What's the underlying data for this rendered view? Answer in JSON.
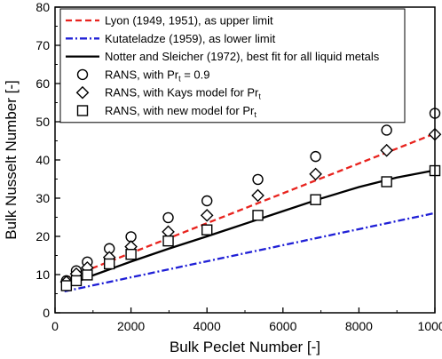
{
  "chart_data": {
    "type": "line",
    "xlabel": "Bulk Peclet Number [-]",
    "ylabel": "Bulk Nusselt Number [-]",
    "xlim": [
      0,
      10000
    ],
    "ylim": [
      0,
      80
    ],
    "x_ticks": [
      "0",
      "2000",
      "4000",
      "6000",
      "8000",
      "10000"
    ],
    "y_ticks": [
      "0",
      "10",
      "20",
      "30",
      "40",
      "50",
      "60",
      "70",
      "80"
    ],
    "grid": false,
    "legend_position": "top-left",
    "colors": {
      "lyon": "#e8231e",
      "kutateladze": "#1f1fd6",
      "notter": "#000000",
      "markers": "#000000"
    },
    "series": [
      {
        "name": "Lyon (1949, 1951), as upper limit",
        "legend_main": "Lyon (1949, 1951), as upper limit",
        "legend_sub": "",
        "legend_tail": "",
        "kind": "line",
        "style": "dashed",
        "color": "#e8231e",
        "x": [
          250,
          10000
        ],
        "y": [
          8.8,
          46.9
        ]
      },
      {
        "name": "Kutateladze (1959), as lower limit",
        "legend_main": "Kutateladze (1959), as lower limit",
        "legend_sub": "",
        "legend_tail": "",
        "kind": "line",
        "style": "dashdot",
        "color": "#1f1fd6",
        "x": [
          250,
          10000
        ],
        "y": [
          5.6,
          26.1
        ]
      },
      {
        "name": "Notter and Sleicher (1972), best fit for all liquid metals",
        "legend_main": "Notter and Sleicher (1972), best fit for all liquid metals",
        "legend_sub": "",
        "legend_tail": "",
        "kind": "line",
        "style": "solid",
        "color": "#000000",
        "x": [
          250,
          1000,
          2000,
          3000,
          4000,
          5000,
          6000,
          7000,
          8000,
          9000,
          10000
        ],
        "y": [
          6.8,
          9.8,
          13.4,
          16.8,
          20.0,
          23.3,
          26.6,
          29.9,
          32.9,
          35.4,
          37.3
        ]
      },
      {
        "name": "RANS, with Prt = 0.9",
        "legend_main": "RANS, with Pr",
        "legend_sub": "t",
        "legend_tail": " = 0.9",
        "kind": "marker",
        "marker": "circle",
        "color": "#000000",
        "x": [
          300,
          560,
          850,
          1430,
          2000,
          2980,
          4000,
          5340,
          6860,
          8730,
          10000
        ],
        "y": [
          8.4,
          11.0,
          13.3,
          16.8,
          19.9,
          24.9,
          29.3,
          34.9,
          40.9,
          47.8,
          52.2
        ]
      },
      {
        "name": "RANS, with Kays model for Prt",
        "legend_main": "RANS, with Kays model for Pr",
        "legend_sub": "t",
        "legend_tail": "",
        "kind": "marker",
        "marker": "diamond",
        "color": "#000000",
        "x": [
          300,
          560,
          850,
          1430,
          2000,
          2980,
          4000,
          5340,
          6860,
          8730,
          10000
        ],
        "y": [
          8.1,
          10.2,
          11.8,
          14.5,
          17.3,
          21.2,
          25.5,
          30.7,
          36.3,
          42.5,
          46.7
        ]
      },
      {
        "name": "RANS, with new model for Prt",
        "legend_main": "RANS, with new model for Pr",
        "legend_sub": "t",
        "legend_tail": "",
        "kind": "marker",
        "marker": "square",
        "color": "#000000",
        "x": [
          300,
          560,
          850,
          1430,
          2000,
          2980,
          4000,
          5340,
          6860,
          8730,
          10000
        ],
        "y": [
          7.1,
          8.4,
          9.9,
          12.8,
          15.3,
          18.8,
          21.7,
          25.5,
          29.6,
          34.3,
          37.2
        ]
      }
    ]
  }
}
